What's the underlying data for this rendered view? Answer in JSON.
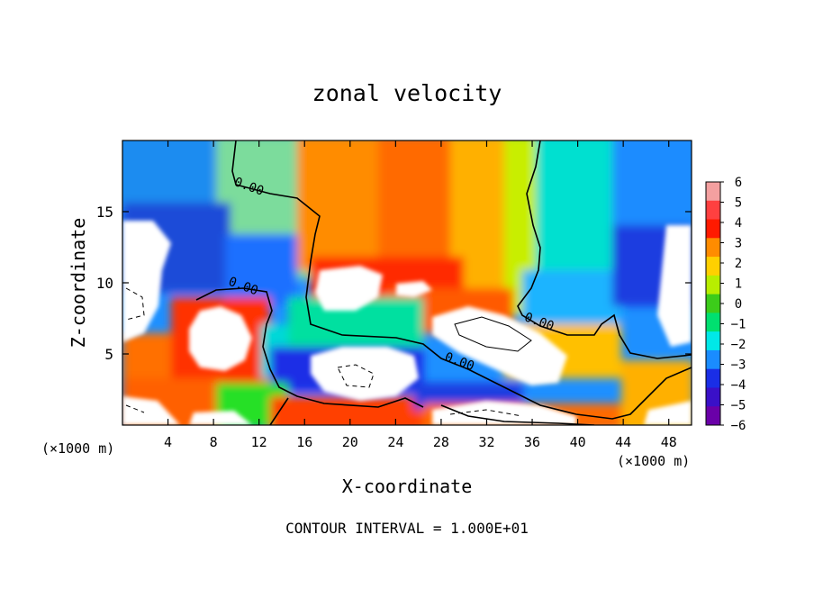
{
  "chart_data": {
    "type": "heatmap",
    "title": "zonal velocity",
    "xlabel": "X-coordinate",
    "ylabel": "Z-coordinate",
    "x_unit_left": "(×1000 m)",
    "x_unit_right": "(×1000 m)",
    "footer": "CONTOUR INTERVAL = 1.000E+01",
    "xlim": [
      0,
      50
    ],
    "ylim": [
      0,
      20
    ],
    "x_ticks": [
      4,
      8,
      12,
      16,
      20,
      24,
      28,
      32,
      36,
      40,
      44,
      48
    ],
    "x_tick_labels": [
      "4",
      "8",
      "12",
      "16",
      "20",
      "24",
      "28",
      "32",
      "36",
      "40",
      "44",
      "48"
    ],
    "y_ticks": [
      5,
      10,
      15
    ],
    "y_tick_labels": [
      "5",
      "10",
      "15"
    ],
    "colorbar": {
      "levels": [
        6,
        5,
        4,
        3,
        2,
        1,
        0,
        -1,
        -2,
        -3,
        -4,
        -5,
        -6
      ],
      "labels": [
        "6",
        "5",
        "4",
        "3",
        "2",
        "1",
        "0",
        "−1",
        "−2",
        "−3",
        "−4",
        "−5",
        "−6"
      ],
      "colors": [
        "#f4a0a0",
        "#ff4040",
        "#ff1a00",
        "#ff8c00",
        "#ffd000",
        "#b8ee00",
        "#3ccc1a",
        "#00e070",
        "#00e8e8",
        "#1a8cff",
        "#1a2ee6",
        "#3a10c8",
        "#6a00a8"
      ]
    },
    "contour_labels": [
      {
        "text": "0.00",
        "x": 11,
        "y": 16.5
      },
      {
        "text": "0.00",
        "x": 10.5,
        "y": 9.5
      },
      {
        "text": "0.00",
        "x": 36.5,
        "y": 7.0
      },
      {
        "text": "0.00",
        "x": 29.5,
        "y": 4.2
      }
    ],
    "grid": "none",
    "legend": "right"
  }
}
